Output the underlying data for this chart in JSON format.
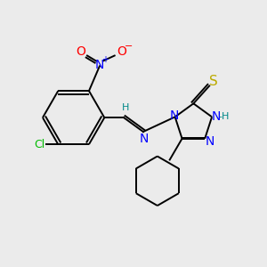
{
  "bg_color": "#ebebeb",
  "atom_colors": {
    "C": "#000000",
    "N": "#0000ff",
    "O": "#ff0000",
    "S": "#bbaa00",
    "Cl": "#00bb00",
    "H": "#008888"
  },
  "bond_color": "#000000",
  "figsize": [
    3.0,
    3.0
  ],
  "dpi": 100
}
